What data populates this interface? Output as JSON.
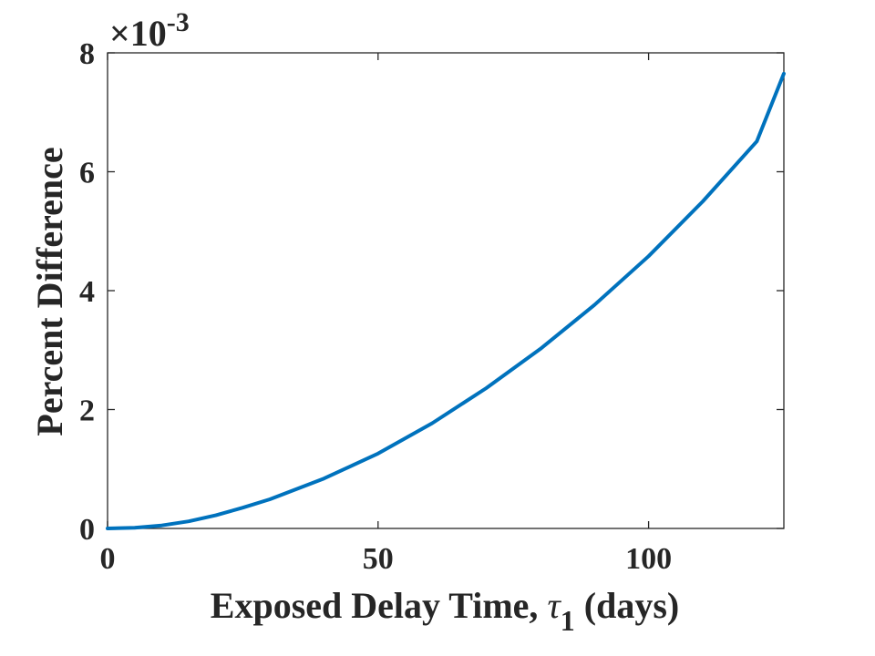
{
  "chart_data": {
    "type": "line",
    "xlabel": "Exposed Delay Time, ",
    "xlabel_symbol": "τ",
    "xlabel_subscript": "1",
    "xlabel_unit": " (days)",
    "ylabel": "Percent Difference",
    "y_exponent_prefix": "×10",
    "y_exponent_power": "-3",
    "xlim": [
      0,
      125
    ],
    "ylim": [
      0,
      8
    ],
    "xticks": [
      0,
      50,
      100
    ],
    "xtick_labels": [
      "0",
      "50",
      "100"
    ],
    "yticks": [
      0,
      2,
      4,
      6,
      8
    ],
    "ytick_labels": [
      "0",
      "2",
      "4",
      "6",
      "8"
    ],
    "grid": false,
    "series": [
      {
        "color": "#0072bd",
        "x": [
          0,
          5,
          10,
          15,
          20,
          25,
          30,
          40,
          50,
          60,
          70,
          80,
          90,
          100,
          110,
          120,
          125
        ],
        "y": [
          0,
          0.01,
          0.05,
          0.12,
          0.22,
          0.35,
          0.49,
          0.84,
          1.26,
          1.77,
          2.36,
          3.02,
          3.76,
          4.58,
          5.5,
          6.51,
          7.65
        ]
      }
    ]
  }
}
